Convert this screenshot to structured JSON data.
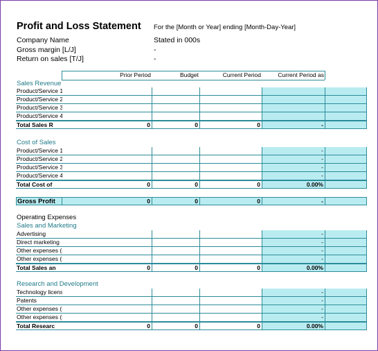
{
  "header": {
    "title": "Profit and Loss Statement",
    "subtitle": "For the [Month or Year] ending [Month-Day-Year]",
    "company_label": "Company Name",
    "stated": "Stated in 000s",
    "gross_margin_label": "Gross margin  [L/J]",
    "gross_margin_value": "-",
    "return_label": "Return on sales  [T/J]",
    "return_value": "-"
  },
  "columns": [
    "Prior Period",
    "Budget",
    "Current Period",
    "Current Period as"
  ],
  "sales_revenue": {
    "title": "Sales Revenue",
    "rows": [
      {
        "label": "Product/Service 1",
        "prior": "",
        "budget": "",
        "current": "",
        "pct": ""
      },
      {
        "label": "Product/Service 2",
        "prior": "",
        "budget": "",
        "current": "",
        "pct": ""
      },
      {
        "label": "Product/Service 3",
        "prior": "",
        "budget": "",
        "current": "",
        "pct": ""
      },
      {
        "label": "Product/Service 4",
        "prior": "",
        "budget": "",
        "current": "",
        "pct": ""
      }
    ],
    "total": {
      "label": "Total Sales R",
      "prior": "0",
      "budget": "0",
      "current": "0",
      "pct": "-"
    }
  },
  "cost_of_sales": {
    "title": "Cost of Sales",
    "rows": [
      {
        "label": "Product/Service 1",
        "prior": "",
        "budget": "",
        "current": "",
        "pct": "-"
      },
      {
        "label": "Product/Service 2",
        "prior": "",
        "budget": "",
        "current": "",
        "pct": "-"
      },
      {
        "label": "Product/Service 3",
        "prior": "",
        "budget": "",
        "current": "",
        "pct": "-"
      },
      {
        "label": "Product/Service 4",
        "prior": "",
        "budget": "",
        "current": "",
        "pct": "-"
      }
    ],
    "total": {
      "label": "Total Cost of",
      "prior": "0",
      "budget": "0",
      "current": "0",
      "pct": "0.00%"
    }
  },
  "gross_profit": {
    "label": "Gross Profit",
    "prior": "0",
    "budget": "0",
    "current": "0",
    "pct": "-"
  },
  "operating_expenses": {
    "title": "Operating Expenses"
  },
  "sales_marketing": {
    "title": "Sales and Marketing",
    "rows": [
      {
        "label": "Advertising",
        "prior": "",
        "budget": "",
        "current": "",
        "pct": "-"
      },
      {
        "label": "Direct marketing",
        "prior": "",
        "budget": "",
        "current": "",
        "pct": "-"
      },
      {
        "label": "Other expenses (specify)",
        "prior": "",
        "budget": "",
        "current": "",
        "pct": "-"
      },
      {
        "label": "Other expenses (specify)",
        "prior": "",
        "budget": "",
        "current": "",
        "pct": "-"
      }
    ],
    "total": {
      "label": "Total Sales an",
      "prior": "0",
      "budget": "0",
      "current": "0",
      "pct": "0.00%"
    }
  },
  "research_dev": {
    "title": "Research and Development",
    "rows": [
      {
        "label": "Technology licenses",
        "prior": "",
        "budget": "",
        "current": "",
        "pct": "-"
      },
      {
        "label": "Patents",
        "prior": "",
        "budget": "",
        "current": "",
        "pct": "-"
      },
      {
        "label": "Other expenses (specify)",
        "prior": "",
        "budget": "",
        "current": "",
        "pct": "-"
      },
      {
        "label": "Other expenses (specify)",
        "prior": "",
        "budget": "",
        "current": "",
        "pct": "-"
      }
    ],
    "total": {
      "label": "Total Researc",
      "prior": "0",
      "budget": "0",
      "current": "0",
      "pct": "0.00%"
    }
  }
}
